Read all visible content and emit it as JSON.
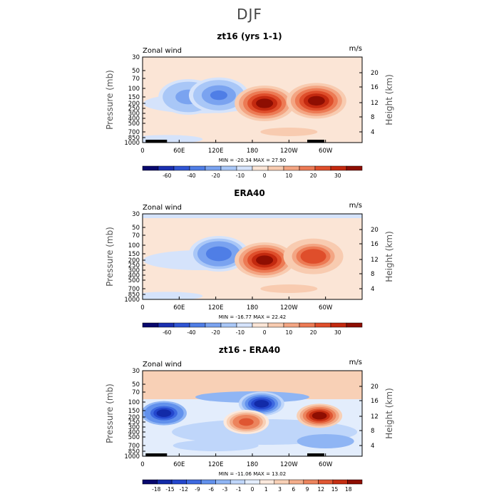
{
  "page": {
    "title": "DJF"
  },
  "chart_data": [
    {
      "type": "heatmap",
      "title": "zt16 (yrs 1-1)",
      "corner_left": "Zonal wind",
      "corner_right": "m/s",
      "ylabel": "Pressure (mb)",
      "ylabel_right": "Height (km)",
      "x_ticks": [
        "0",
        "60E",
        "120E",
        "180",
        "120W",
        "60W"
      ],
      "y_ticks": [
        "30",
        "50",
        "70",
        "100",
        "150",
        "200",
        "250",
        "300",
        "400",
        "500",
        "700",
        "850",
        "1000"
      ],
      "y_ticks_right": [
        "20",
        "16",
        "12",
        "8",
        "4"
      ],
      "min_max_text": "MIN = -20.34   MAX =  27.90",
      "colorbar_ticks": [
        "-60",
        "-40",
        "-20",
        "-10",
        "0",
        "10",
        "20",
        "30"
      ],
      "colorbar_colors": [
        "#08086e",
        "#1a2fb0",
        "#2f55d4",
        "#4f7ee6",
        "#7aa3f0",
        "#a9c7f7",
        "#d5e3fb",
        "#fbe5d6",
        "#f8cbb0",
        "#f3a583",
        "#ec7a54",
        "#df4e2b",
        "#c3290f",
        "#8e0e02"
      ],
      "features": [
        {
          "lon": 75,
          "p": 150,
          "value": -10
        },
        {
          "lon": 125,
          "p": 140,
          "value": -13
        },
        {
          "lon": 200,
          "p": 200,
          "value": 27.9
        },
        {
          "lon": 285,
          "p": 180,
          "value": 25
        }
      ],
      "min": -20.34,
      "max": 27.9
    },
    {
      "type": "heatmap",
      "title": "ERA40",
      "corner_left": "Zonal wind",
      "corner_right": "m/s",
      "ylabel": "Pressure (mb)",
      "ylabel_right": "Height (km)",
      "x_ticks": [
        "0",
        "60E",
        "120E",
        "180",
        "120W",
        "60W"
      ],
      "y_ticks": [
        "30",
        "50",
        "70",
        "100",
        "150",
        "200",
        "250",
        "300",
        "400",
        "500",
        "700",
        "850",
        "1000"
      ],
      "y_ticks_right": [
        "20",
        "16",
        "12",
        "8",
        "4"
      ],
      "min_max_text": "MIN = -16.77   MAX =  22.42",
      "colorbar_ticks": [
        "-60",
        "-40",
        "-20",
        "-10",
        "0",
        "10",
        "20",
        "30"
      ],
      "colorbar_colors": [
        "#08086e",
        "#1a2fb0",
        "#2f55d4",
        "#4f7ee6",
        "#7aa3f0",
        "#a9c7f7",
        "#d5e3fb",
        "#fbe5d6",
        "#f8cbb0",
        "#f3a583",
        "#ec7a54",
        "#df4e2b",
        "#c3290f",
        "#8e0e02"
      ],
      "features": [
        {
          "lon": 125,
          "p": 150,
          "value": -12
        },
        {
          "lon": 200,
          "p": 200,
          "value": 22.42
        },
        {
          "lon": 280,
          "p": 170,
          "value": 16
        }
      ],
      "min": -16.77,
      "max": 22.42
    },
    {
      "type": "heatmap",
      "title": "zt16 - ERA40",
      "corner_left": "Zonal wind",
      "corner_right": "m/s",
      "ylabel": "Pressure (mb)",
      "ylabel_right": "Height (km)",
      "x_ticks": [
        "0",
        "60E",
        "120E",
        "180",
        "120W",
        "60W"
      ],
      "y_ticks": [
        "30",
        "50",
        "70",
        "100",
        "150",
        "200",
        "250",
        "300",
        "400",
        "500",
        "700",
        "850",
        "1000"
      ],
      "y_ticks_right": [
        "20",
        "16",
        "12",
        "8",
        "4"
      ],
      "min_max_text": "MIN = -11.06   MAX =  13.02",
      "colorbar_ticks": [
        "-18",
        "-15",
        "-12",
        "-9",
        "-6",
        "-3",
        "-1",
        "0",
        "1",
        "3",
        "6",
        "9",
        "12",
        "15",
        "18"
      ],
      "colorbar_colors": [
        "#08086e",
        "#122aa8",
        "#2447cd",
        "#3d69e0",
        "#6291ec",
        "#8fb5f4",
        "#bfd6fa",
        "#e3edfc",
        "#fbe9dd",
        "#f8d0b6",
        "#f3ad8b",
        "#ec845d",
        "#df5632",
        "#c52e12",
        "#8e0e02"
      ],
      "features": [
        {
          "lon": 35,
          "p": 170,
          "value": -11
        },
        {
          "lon": 195,
          "p": 110,
          "value": -10
        },
        {
          "lon": 290,
          "p": 190,
          "value": 13.02
        },
        {
          "lon": 170,
          "p": 250,
          "value": 9
        }
      ],
      "min": -11.06,
      "max": 13.02
    }
  ]
}
